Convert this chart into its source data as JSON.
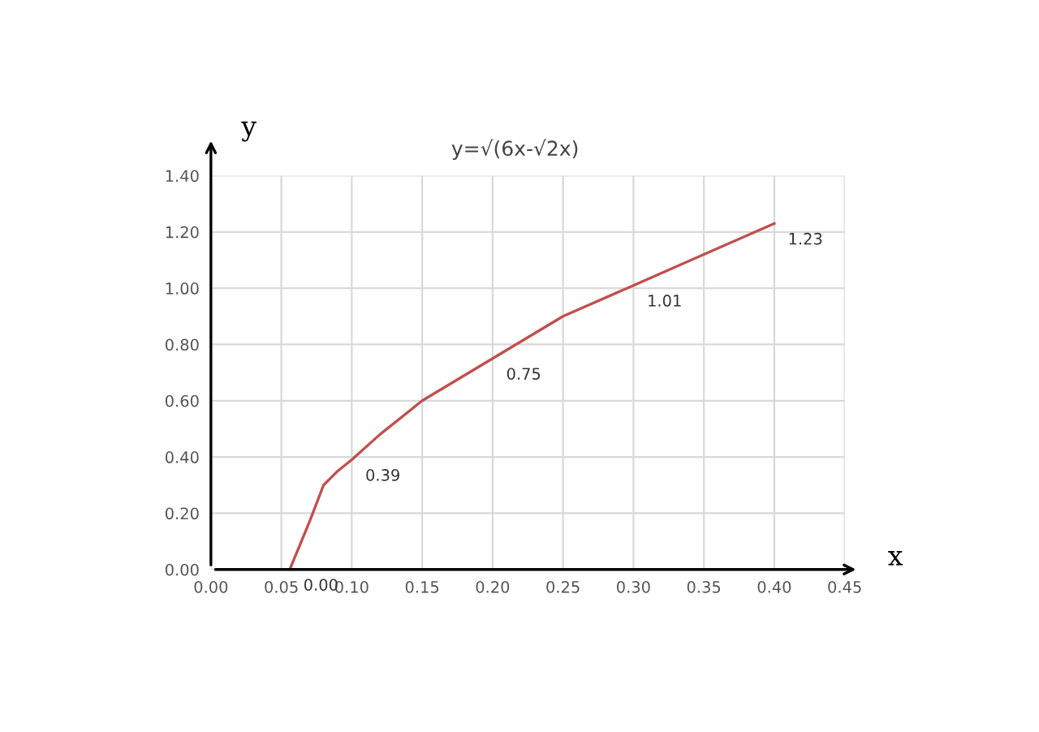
{
  "chart_data": {
    "type": "line",
    "title": "y=√(6x-√2x)",
    "xlabel": "x",
    "ylabel": "y",
    "x": [
      0.056,
      0.07,
      0.08,
      0.09,
      0.1,
      0.12,
      0.15,
      0.2,
      0.25,
      0.3,
      0.35,
      0.4
    ],
    "series": [
      {
        "color": "#c0504d",
        "values": [
          0.0,
          0.17,
          0.3,
          0.35,
          0.39,
          0.48,
          0.6,
          0.75,
          0.9,
          1.01,
          1.12,
          1.23
        ],
        "value_labels": [
          "0.00",
          null,
          null,
          null,
          "0.39",
          null,
          null,
          "0.75",
          null,
          "1.01",
          null,
          "1.23"
        ]
      }
    ],
    "xlim": [
      0,
      0.45
    ],
    "ylim": [
      0,
      1.4
    ],
    "xticks": [
      {
        "value": 0,
        "label": "0.00"
      },
      {
        "value": 0.05,
        "label": "0.05"
      },
      {
        "value": 0.1,
        "label": "0.10"
      },
      {
        "value": 0.15,
        "label": "0.15"
      },
      {
        "value": 0.2,
        "label": "0.20"
      },
      {
        "value": 0.25,
        "label": "0.25"
      },
      {
        "value": 0.3,
        "label": "0.30"
      },
      {
        "value": 0.35,
        "label": "0.35"
      },
      {
        "value": 0.4,
        "label": "0.40"
      },
      {
        "value": 0.45,
        "label": "0.45"
      }
    ],
    "yticks": [
      {
        "value": 0,
        "label": "0.00"
      },
      {
        "value": 0.2,
        "label": "0.20"
      },
      {
        "value": 0.4,
        "label": "0.40"
      },
      {
        "value": 0.6,
        "label": "0.60"
      },
      {
        "value": 0.8,
        "label": "0.80"
      },
      {
        "value": 1.0,
        "label": "1.00"
      },
      {
        "value": 1.2,
        "label": "1.20"
      },
      {
        "value": 1.4,
        "label": "1.40"
      }
    ],
    "grid": true,
    "marker": "none",
    "line_style": "solid"
  }
}
